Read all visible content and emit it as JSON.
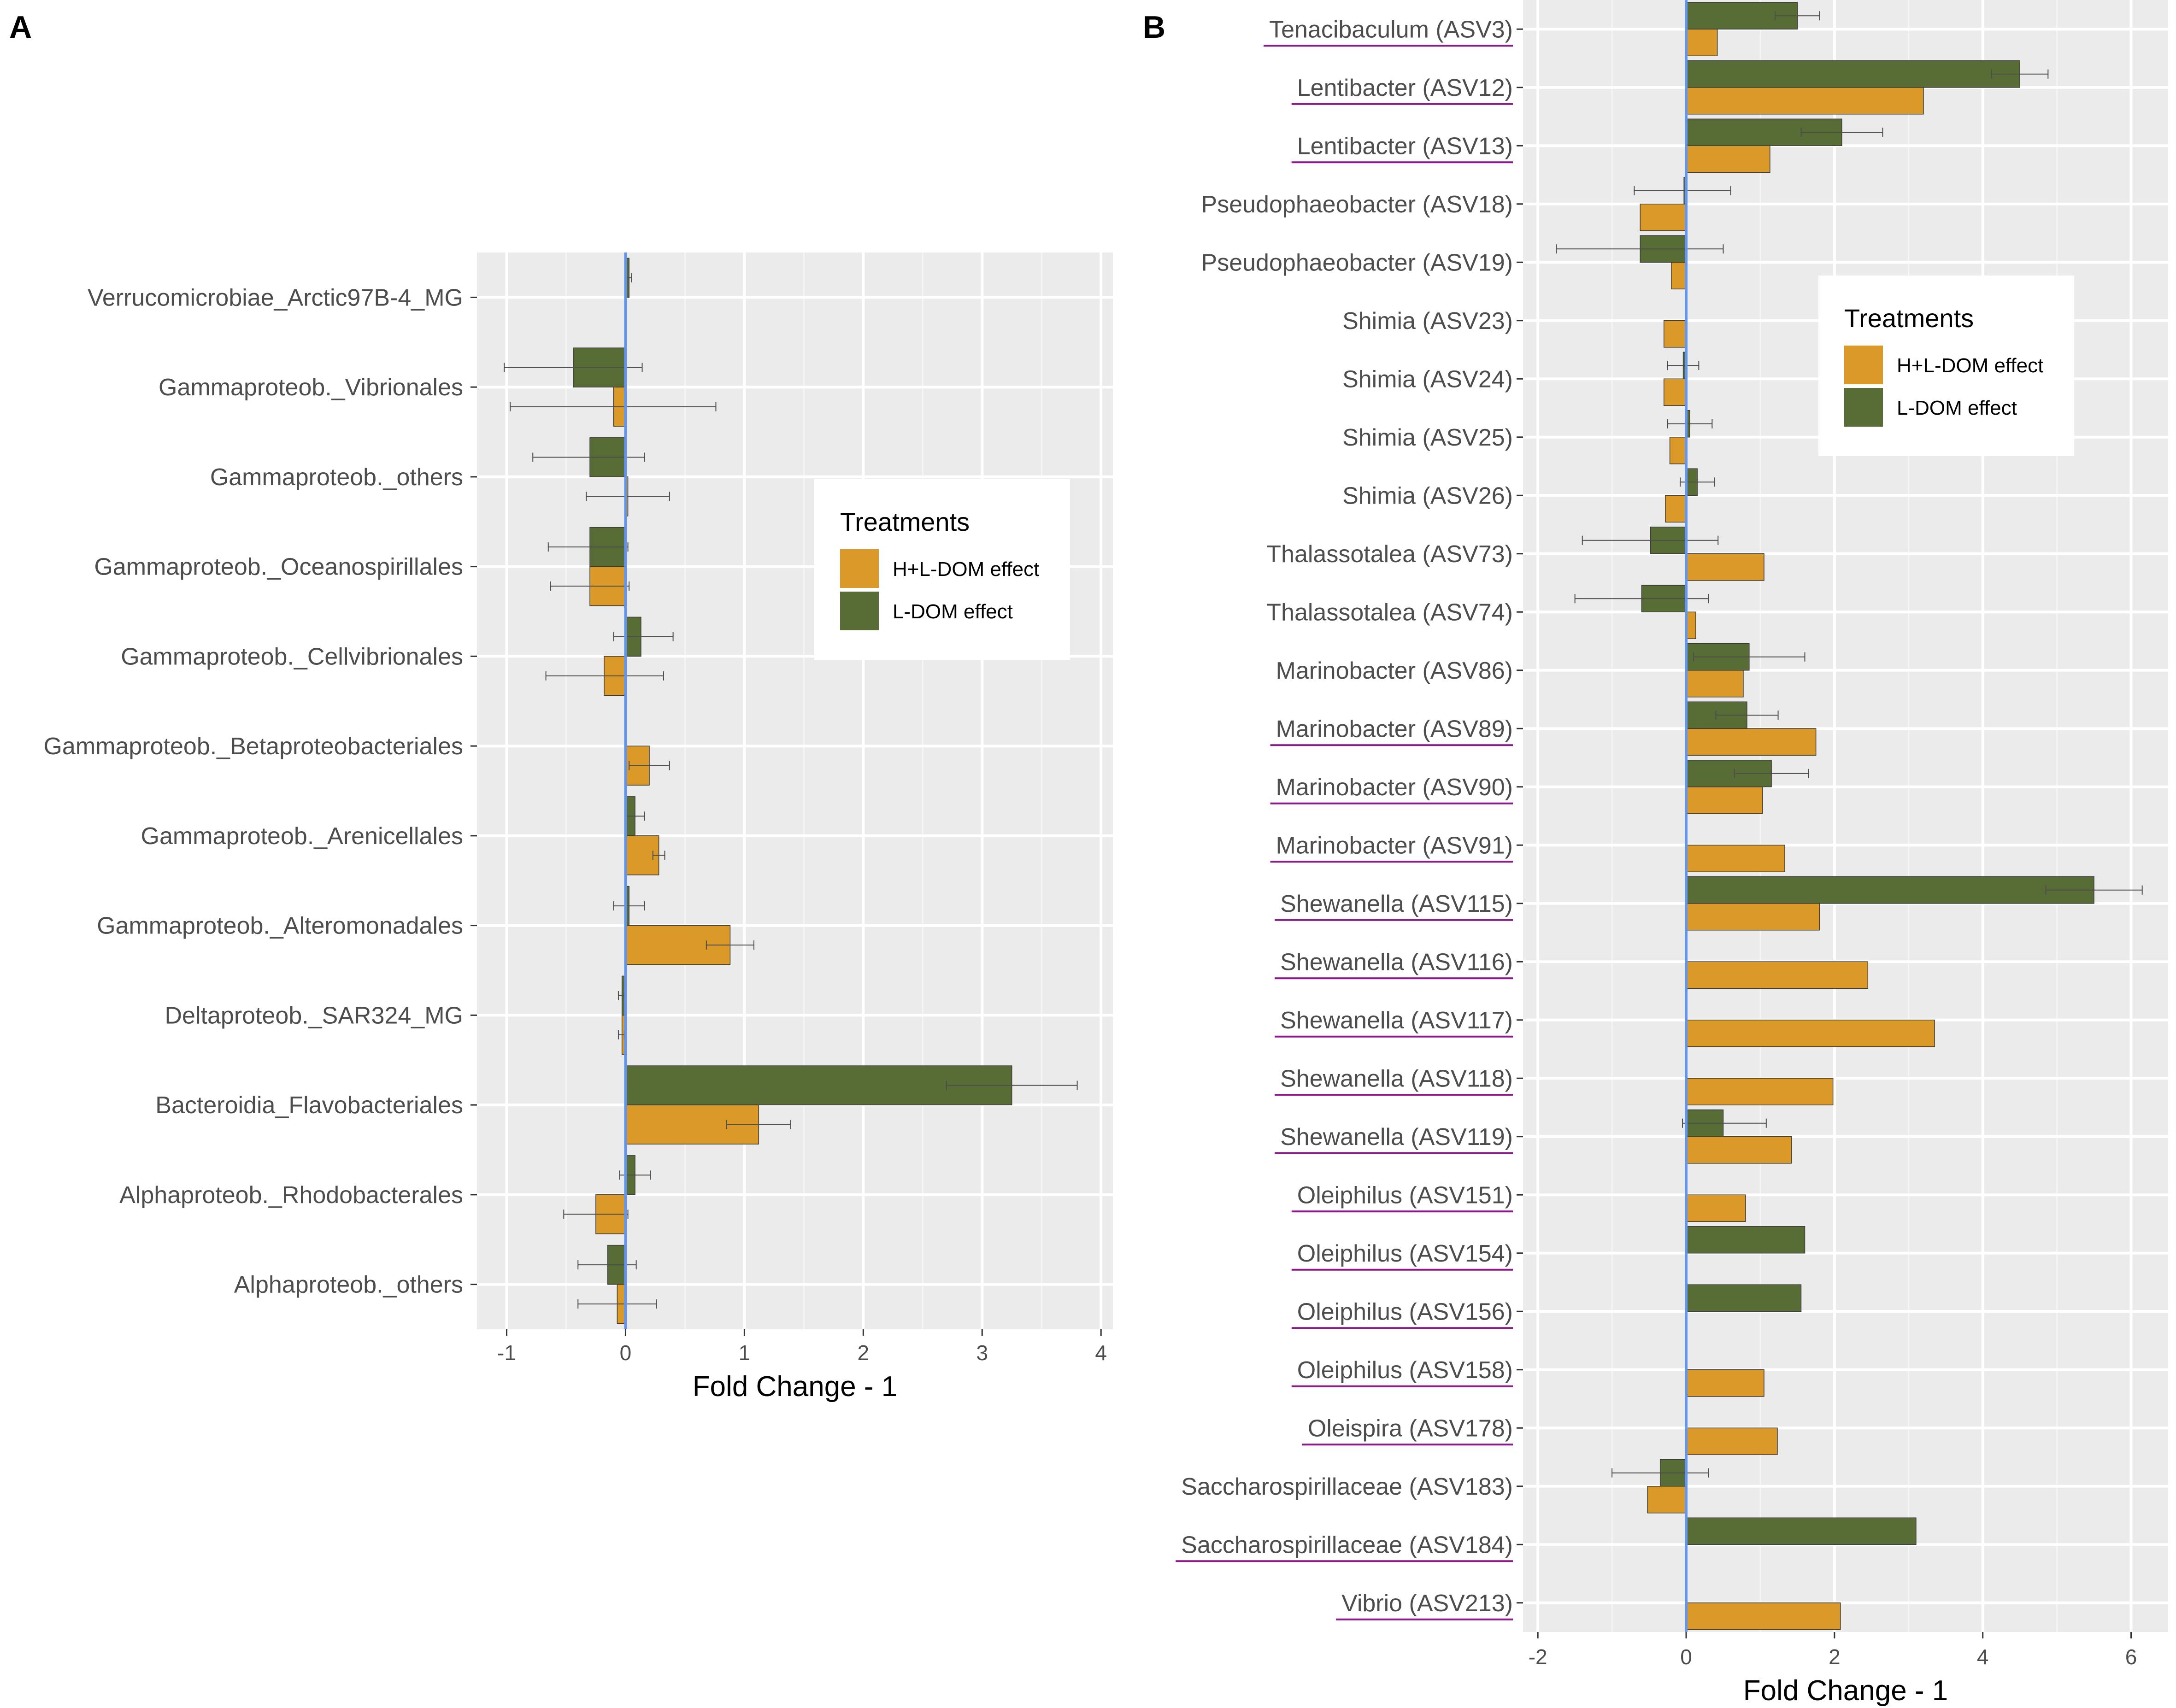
{
  "colors": {
    "hl_dom": "#DB9A28",
    "l_dom": "#586C35",
    "zero_line": "#6495ED",
    "panel_bg": "#EBEBEB",
    "grid_major": "#FFFFFF",
    "underline": "#8B1A8B",
    "error_bar": "#4d4d4d"
  },
  "chart_data": [
    {
      "type": "bar",
      "orientation": "horizontal",
      "panel_label": "A",
      "xlabel": "Fold Change - 1",
      "ylabel": "",
      "xlim": [
        -1.25,
        4.1
      ],
      "xticks": [
        -1,
        0,
        1,
        2,
        3,
        4
      ],
      "xtick_labels": [
        "-1",
        "0",
        "1",
        "2",
        "3",
        "4"
      ],
      "legend": {
        "title": "Treatments",
        "position": "right",
        "entries": [
          "H+L-DOM effect",
          "L-DOM effect"
        ]
      },
      "categories": [
        {
          "label": "Verrucomicrobiae_Arctic97B-4_MG",
          "underline": false
        },
        {
          "label": "Gammaproteob._Vibrionales",
          "underline": false
        },
        {
          "label": "Gammaproteob._others",
          "underline": false
        },
        {
          "label": "Gammaproteob._Oceanospirillales",
          "underline": false
        },
        {
          "label": "Gammaproteob._Cellvibrionales",
          "underline": false
        },
        {
          "label": "Gammaproteob._Betaproteobacteriales",
          "underline": false
        },
        {
          "label": "Gammaproteob._Arenicellales",
          "underline": false
        },
        {
          "label": "Gammaproteob._Alteromonadales",
          "underline": false
        },
        {
          "label": "Deltaproteob._SAR324_MG",
          "underline": false
        },
        {
          "label": "Bacteroidia_Flavobacteriales",
          "underline": false
        },
        {
          "label": "Alphaproteob._Rhodobacterales",
          "underline": false
        },
        {
          "label": "Alphaproteob._others",
          "underline": false
        }
      ],
      "series": [
        {
          "name": "L-DOM effect",
          "color_key": "l_dom",
          "values": [
            0.03,
            -0.44,
            -0.3,
            -0.3,
            0.13,
            null,
            0.08,
            0.03,
            -0.03,
            3.25,
            0.08,
            -0.15
          ],
          "err_low": [
            0.0,
            -1.02,
            -0.78,
            -0.65,
            -0.1,
            null,
            0.0,
            -0.1,
            -0.06,
            2.7,
            -0.05,
            -0.4
          ],
          "err_high": [
            0.05,
            0.14,
            0.16,
            0.02,
            0.4,
            null,
            0.16,
            0.16,
            -0.01,
            3.8,
            0.21,
            0.09
          ]
        },
        {
          "name": "H+L-DOM effect",
          "color_key": "hl_dom",
          "values": [
            null,
            -0.1,
            0.02,
            -0.3,
            -0.18,
            0.2,
            0.28,
            0.88,
            -0.03,
            1.12,
            -0.25,
            -0.07
          ],
          "err_low": [
            null,
            -0.97,
            -0.33,
            -0.63,
            -0.67,
            0.03,
            0.23,
            0.68,
            -0.06,
            0.85,
            -0.52,
            -0.4
          ],
          "err_high": [
            null,
            0.76,
            0.37,
            0.03,
            0.32,
            0.37,
            0.33,
            1.08,
            -0.01,
            1.39,
            0.02,
            0.26
          ]
        }
      ]
    },
    {
      "type": "bar",
      "orientation": "horizontal",
      "panel_label": "B",
      "xlabel": "Fold Change - 1",
      "ylabel": "",
      "xlim": [
        -2.2,
        6.5
      ],
      "xticks": [
        -2,
        0,
        2,
        4,
        6
      ],
      "xtick_labels": [
        "-2",
        "0",
        "2",
        "4",
        "6"
      ],
      "legend": {
        "title": "Treatments",
        "position": "top-right",
        "entries": [
          "H+L-DOM effect",
          "L-DOM effect"
        ]
      },
      "categories": [
        {
          "label": "Tenacibaculum (ASV3)",
          "underline": true
        },
        {
          "label": "Lentibacter (ASV12)",
          "underline": true
        },
        {
          "label": "Lentibacter (ASV13)",
          "underline": true
        },
        {
          "label": "Pseudophaeobacter (ASV18)",
          "underline": false
        },
        {
          "label": "Pseudophaeobacter (ASV19)",
          "underline": false
        },
        {
          "label": "Shimia (ASV23)",
          "underline": false
        },
        {
          "label": "Shimia (ASV24)",
          "underline": false
        },
        {
          "label": "Shimia (ASV25)",
          "underline": false
        },
        {
          "label": "Shimia (ASV26)",
          "underline": false
        },
        {
          "label": "Thalassotalea (ASV73)",
          "underline": false
        },
        {
          "label": "Thalassotalea (ASV74)",
          "underline": false
        },
        {
          "label": "Marinobacter (ASV86)",
          "underline": false
        },
        {
          "label": "Marinobacter (ASV89)",
          "underline": true
        },
        {
          "label": "Marinobacter (ASV90)",
          "underline": true
        },
        {
          "label": "Marinobacter (ASV91)",
          "underline": true
        },
        {
          "label": "Shewanella (ASV115)",
          "underline": true
        },
        {
          "label": "Shewanella (ASV116)",
          "underline": true
        },
        {
          "label": "Shewanella (ASV117)",
          "underline": true
        },
        {
          "label": "Shewanella (ASV118)",
          "underline": true
        },
        {
          "label": "Shewanella (ASV119)",
          "underline": true
        },
        {
          "label": "Oleiphilus (ASV151)",
          "underline": true
        },
        {
          "label": "Oleiphilus (ASV154)",
          "underline": true
        },
        {
          "label": "Oleiphilus (ASV156)",
          "underline": true
        },
        {
          "label": "Oleiphilus (ASV158)",
          "underline": true
        },
        {
          "label": "Oleispira (ASV178)",
          "underline": true
        },
        {
          "label": "Saccharospirillaceae (ASV183)",
          "underline": false
        },
        {
          "label": "Saccharospirillaceae (ASV184)",
          "underline": true
        },
        {
          "label": "Vibrio (ASV213)",
          "underline": true
        }
      ],
      "series": [
        {
          "name": "L-DOM effect",
          "color_key": "l_dom",
          "values": [
            1.5,
            4.5,
            2.1,
            -0.03,
            -0.62,
            null,
            -0.04,
            0.05,
            0.15,
            -0.48,
            -0.6,
            0.85,
            0.82,
            1.15,
            null,
            5.5,
            null,
            null,
            null,
            0.5,
            null,
            1.6,
            1.55,
            null,
            null,
            -0.35,
            3.1,
            null
          ],
          "err_low": [
            1.2,
            4.12,
            1.55,
            -0.7,
            -1.75,
            null,
            -0.25,
            -0.25,
            -0.08,
            -1.4,
            -1.5,
            0.1,
            0.4,
            0.65,
            null,
            4.85,
            null,
            null,
            null,
            -0.05,
            null,
            1.6,
            1.55,
            null,
            null,
            -1.0,
            3.1,
            null
          ],
          "err_high": [
            1.8,
            4.88,
            2.65,
            0.6,
            0.5,
            null,
            0.17,
            0.35,
            0.38,
            0.43,
            0.3,
            1.6,
            1.24,
            1.65,
            null,
            6.15,
            null,
            null,
            null,
            1.08,
            null,
            1.6,
            1.55,
            null,
            null,
            0.3,
            3.1,
            null
          ]
        },
        {
          "name": "H+L-DOM effect",
          "color_key": "hl_dom",
          "values": [
            0.42,
            3.2,
            1.13,
            -0.62,
            -0.2,
            -0.3,
            -0.3,
            -0.22,
            -0.28,
            1.05,
            0.13,
            0.77,
            1.75,
            1.03,
            1.33,
            1.8,
            2.45,
            3.35,
            1.98,
            1.42,
            0.8,
            null,
            null,
            1.05,
            1.23,
            -0.52,
            null,
            2.08
          ]
        }
      ]
    }
  ]
}
